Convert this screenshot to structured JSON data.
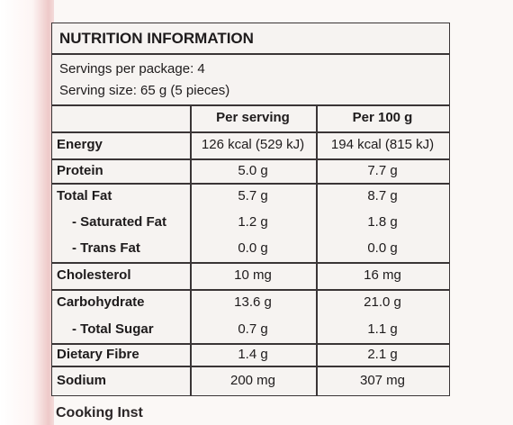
{
  "header": {
    "title": "NUTRITION INFORMATION"
  },
  "servings": [
    "Servings per package: 4",
    "Serving size: 65 g (5 pieces)"
  ],
  "table": {
    "columns": [
      "Per serving",
      "Per 100 g"
    ],
    "groups": [
      {
        "rows": [
          [
            "Energy",
            "126 kcal (529 kJ)",
            "194 kcal (815 kJ)"
          ]
        ]
      },
      {
        "rows": [
          [
            "Protein",
            "5.0 g",
            "7.7 g"
          ]
        ]
      },
      {
        "rows": [
          [
            "Total Fat",
            "5.7 g",
            "8.7 g"
          ],
          [
            "- Saturated Fat",
            "1.2 g",
            "1.8 g"
          ],
          [
            "- Trans Fat",
            "0.0 g",
            "0.0 g"
          ]
        ]
      },
      {
        "rows": [
          [
            "Cholesterol",
            "10 mg",
            "16 mg"
          ]
        ]
      },
      {
        "rows": [
          [
            "Carbohydrate",
            "13.6 g",
            "21.0 g"
          ],
          [
            "- Total Sugar",
            "0.7 g",
            "1.1 g"
          ]
        ]
      },
      {
        "rows": [
          [
            "Dietary Fibre",
            "1.4 g",
            "2.1 g"
          ]
        ]
      },
      {
        "rows": [
          [
            "Sodium",
            "200 mg",
            "307 mg"
          ]
        ]
      }
    ]
  },
  "footer": "Cooking Inst"
}
